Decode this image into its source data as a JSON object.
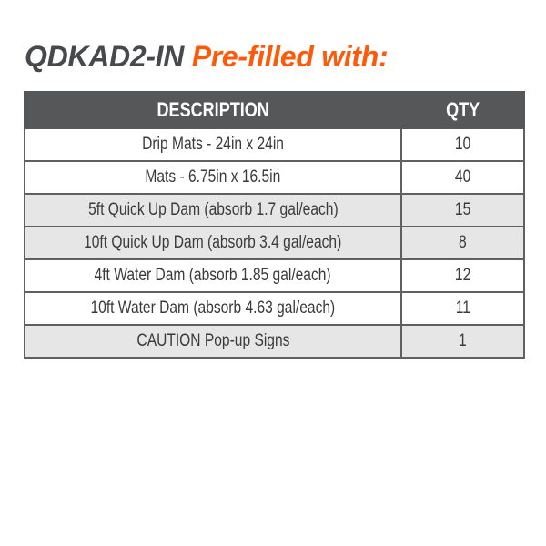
{
  "title": {
    "code": "QDKAD2-IN",
    "subtitle": "Pre-filled with:"
  },
  "colors": {
    "title_code": "#47494c",
    "title_accent": "#ff5a0a",
    "header_bg": "#555759",
    "shaded_row": "#e6e6e7"
  },
  "table": {
    "headers": [
      "DESCRIPTION",
      "QTY"
    ],
    "rows": [
      {
        "description": "Drip Mats - 24in x 24in",
        "qty": "10",
        "shaded": false
      },
      {
        "description": "Mats - 6.75in x 16.5in",
        "qty": "40",
        "shaded": false
      },
      {
        "description": "5ft Quick Up Dam (absorb 1.7 gal/each)",
        "qty": "15",
        "shaded": true
      },
      {
        "description": "10ft Quick Up Dam (absorb 3.4 gal/each)",
        "qty": "8",
        "shaded": true
      },
      {
        "description": "4ft Water Dam (absorb 1.85 gal/each)",
        "qty": "12",
        "shaded": false
      },
      {
        "description": "10ft Water Dam (absorb 4.63 gal/each)",
        "qty": "11",
        "shaded": false
      },
      {
        "description": "CAUTION Pop-up Signs",
        "qty": "1",
        "shaded": true
      }
    ]
  }
}
